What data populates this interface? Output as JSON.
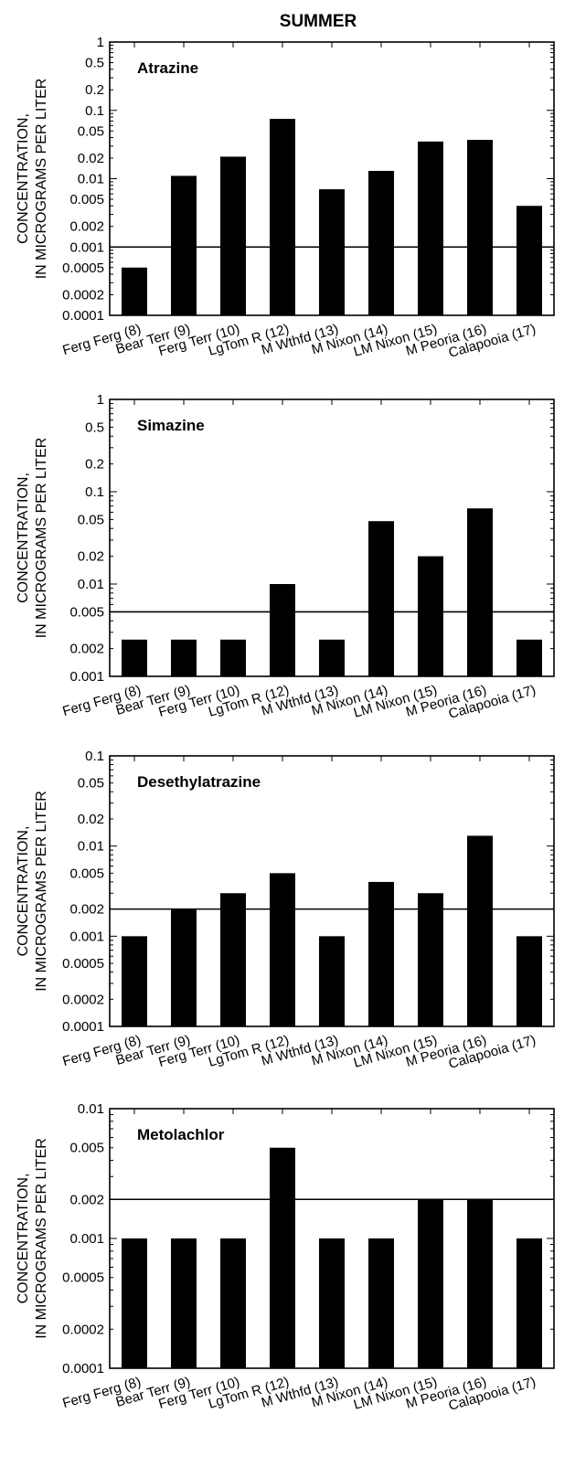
{
  "figure": {
    "title": "SUMMER"
  },
  "colors": {
    "bar": "#000000",
    "axis": "#000000",
    "background": "#ffffff"
  },
  "chart_data": [
    {
      "type": "bar",
      "title": "Atrazine",
      "ylabel_line1": "CONCENTRATION,",
      "ylabel_line2": "IN MICROGRAMS PER LITER",
      "yscale": "log",
      "ylim": [
        0.0001,
        1
      ],
      "yticks": [
        "1",
        "0.5",
        "0.2",
        "0.1",
        "0.05",
        "0.02",
        "0.01",
        "0.005",
        "0.002",
        "0.001",
        "0.0005",
        "0.0002",
        "0.0001"
      ],
      "reference_line": 0.001,
      "categories": [
        "Ferg Ferg (8)",
        "Bear Terr (9)",
        "Ferg Terr (10)",
        "LgTom R (12)",
        "M Wthfd (13)",
        "M Nixon (14)",
        "LM Nixon (15)",
        "M Peoria (16)",
        "Calapooia (17)"
      ],
      "values": [
        0.0005,
        0.011,
        0.021,
        0.075,
        0.007,
        0.013,
        0.035,
        0.037,
        0.004
      ]
    },
    {
      "type": "bar",
      "title": "Simazine",
      "ylabel_line1": "CONCENTRATION,",
      "ylabel_line2": "IN MICROGRAMS PER LITER",
      "yscale": "log",
      "ylim": [
        0.001,
        1
      ],
      "yticks": [
        "1",
        "0.5",
        "0.2",
        "0.1",
        "0.05",
        "0.02",
        "0.01",
        "0.005",
        "0.002",
        "0.001"
      ],
      "reference_line": 0.005,
      "categories": [
        "Ferg Ferg (8)",
        "Bear Terr (9)",
        "Ferg Terr (10)",
        "LgTom R (12)",
        "M Wthfd (13)",
        "M Nixon (14)",
        "LM Nixon (15)",
        "M Peoria (16)",
        "Calapooia (17)"
      ],
      "values": [
        0.0025,
        0.0025,
        0.0025,
        0.01,
        0.0025,
        0.048,
        0.02,
        0.066,
        0.0025
      ]
    },
    {
      "type": "bar",
      "title": "Desethylatrazine",
      "ylabel_line1": "CONCENTRATION,",
      "ylabel_line2": "IN MICROGRAMS PER LITER",
      "yscale": "log",
      "ylim": [
        0.0001,
        0.1
      ],
      "yticks": [
        "0.1",
        "0.05",
        "0.02",
        "0.01",
        "0.005",
        "0.002",
        "0.001",
        "0.0005",
        "0.0002",
        "0.0001"
      ],
      "reference_line": 0.002,
      "categories": [
        "Ferg Ferg (8)",
        "Bear Terr (9)",
        "Ferg Terr (10)",
        "LgTom R (12)",
        "M Wthfd (13)",
        "M Nixon (14)",
        "LM Nixon (15)",
        "M Peoria (16)",
        "Calapooia (17)"
      ],
      "values": [
        0.001,
        0.002,
        0.003,
        0.005,
        0.001,
        0.004,
        0.003,
        0.013,
        0.001
      ]
    },
    {
      "type": "bar",
      "title": "Metolachlor",
      "ylabel_line1": "CONCENTRATION,",
      "ylabel_line2": "IN MICROGRAMS PER LITER",
      "yscale": "log",
      "ylim": [
        0.0001,
        0.01
      ],
      "yticks": [
        "0.01",
        "0.005",
        "0.002",
        "0.001",
        "0.0005",
        "0.0002",
        "0.0001"
      ],
      "reference_line": 0.002,
      "categories": [
        "Ferg Ferg (8)",
        "Bear Terr (9)",
        "Ferg Terr (10)",
        "LgTom R (12)",
        "M Wthfd (13)",
        "M Nixon (14)",
        "LM Nixon (15)",
        "M Peoria (16)",
        "Calapooia (17)"
      ],
      "values": [
        0.001,
        0.001,
        0.001,
        0.005,
        0.001,
        0.001,
        0.002,
        0.002,
        0.001
      ]
    }
  ]
}
